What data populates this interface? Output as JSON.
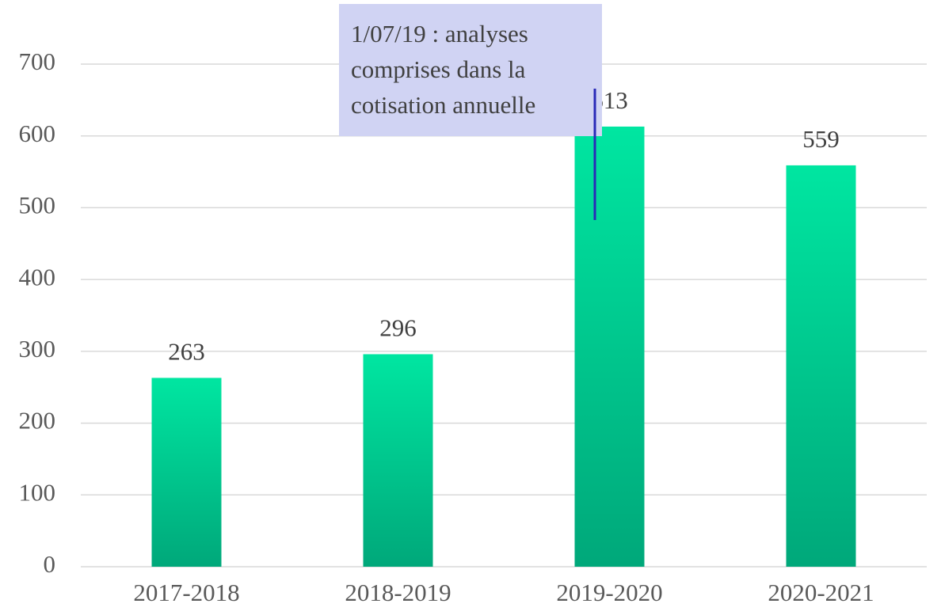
{
  "chart_data": {
    "type": "bar",
    "categories": [
      "2017-2018",
      "2018-2019",
      "2019-2020",
      "2020-2021"
    ],
    "values": [
      263,
      296,
      613,
      559
    ],
    "color": [
      "#00e6a1",
      "#00a87a"
    ],
    "ylim": [
      0,
      700
    ],
    "yticks": [
      0,
      100,
      200,
      300,
      400,
      500,
      600,
      700
    ],
    "grid": true,
    "annotation": [
      "1/07/19 : analyses",
      "comprises dans la",
      "cotisation annuelle"
    ]
  }
}
